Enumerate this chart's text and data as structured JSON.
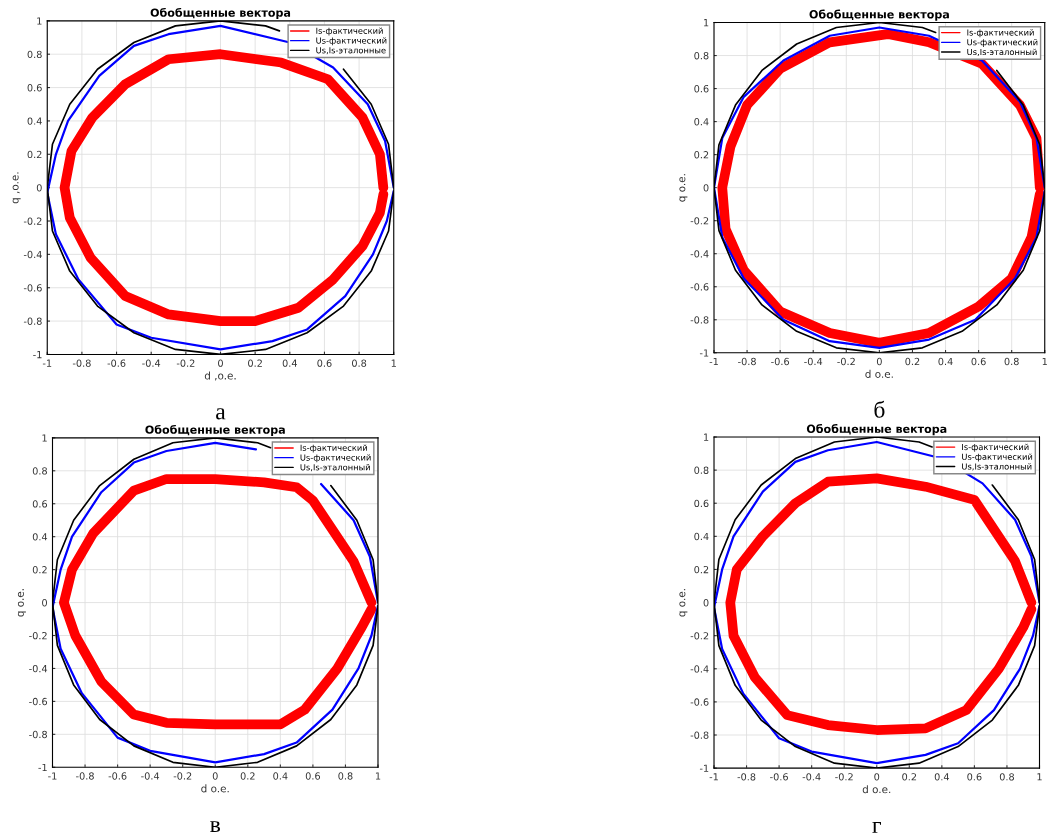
{
  "chart_data": [
    {
      "type": "line",
      "title": "Обобщенные вектора",
      "xlabel": "d ,o.e.",
      "ylabel": "q ,o.e.",
      "xlim": [
        -1,
        1
      ],
      "ylim": [
        -1,
        1
      ],
      "xticks": [
        -1,
        -0.8,
        -0.6,
        -0.4,
        -0.2,
        0,
        0.2,
        0.4,
        0.6,
        0.8,
        1
      ],
      "yticks": [
        -1,
        -0.8,
        -0.6,
        -0.4,
        -0.2,
        0,
        0.2,
        0.4,
        0.6,
        0.8,
        1
      ],
      "grid": true,
      "legend": "top right",
      "annotations": [
        "а"
      ],
      "series": [
        {
          "name": "Is-фактический",
          "color": "#ff0000",
          "x": [
            0.94,
            0.92,
            0.82,
            0.62,
            0.35,
            0,
            -0.3,
            -0.55,
            -0.74,
            -0.86,
            -0.9,
            -0.87,
            -0.75,
            -0.55,
            -0.3,
            0,
            0.2,
            0.45,
            0.65,
            0.82,
            0.92,
            0.94
          ],
          "values": [
            0,
            0.2,
            0.42,
            0.65,
            0.75,
            0.8,
            0.77,
            0.62,
            0.42,
            0.22,
            0,
            -0.18,
            -0.42,
            -0.65,
            -0.76,
            -0.8,
            -0.8,
            -0.72,
            -0.55,
            -0.35,
            -0.15,
            -0.04
          ]
        },
        {
          "name": "Us-фактический",
          "color": "#0000ff",
          "x": [
            1,
            0.95,
            0.85,
            0.65,
            0.4,
            0,
            -0.3,
            -0.5,
            -0.7,
            -0.88,
            -0.95,
            -1,
            -0.95,
            -0.82,
            -0.6,
            -0.4,
            0,
            0.3,
            0.5,
            0.72,
            0.88,
            0.96,
            1
          ],
          "values": [
            0,
            0.28,
            0.5,
            0.72,
            0.87,
            0.97,
            0.92,
            0.85,
            0.67,
            0.4,
            0.2,
            -0.03,
            -0.28,
            -0.55,
            -0.82,
            -0.9,
            -0.97,
            -0.92,
            -0.85,
            -0.65,
            -0.4,
            -0.2,
            -0.02
          ]
        },
        {
          "name": "Us,Is-эталонные",
          "color": "#000000",
          "x": [
            1,
            0.97,
            0.87,
            0.71,
            0.5,
            0.34,
            0.26,
            0,
            -0.26,
            -0.5,
            -0.71,
            -0.87,
            -0.97,
            -1,
            -0.97,
            -0.87,
            -0.71,
            -0.5,
            -0.26,
            0,
            0.26,
            0.5,
            0.71,
            0.87,
            0.97,
            1
          ],
          "values": [
            0,
            0.26,
            0.5,
            0.71,
            null,
            0.94,
            0.97,
            1,
            0.97,
            0.87,
            0.71,
            0.5,
            0.26,
            0,
            -0.26,
            -0.5,
            -0.71,
            -0.87,
            -0.97,
            -1,
            -0.97,
            -0.87,
            -0.71,
            -0.5,
            -0.26,
            -0.02
          ]
        }
      ]
    },
    {
      "type": "line",
      "title": "Обобщенные вектора",
      "xlabel": "d o.e.",
      "ylabel": "q o.e.",
      "xlim": [
        -1,
        1
      ],
      "ylim": [
        -1,
        1
      ],
      "xticks": [
        -1,
        -0.8,
        -0.6,
        -0.4,
        -0.2,
        0,
        0.2,
        0.4,
        0.6,
        0.8,
        1
      ],
      "yticks": [
        -1,
        -0.8,
        -0.6,
        -0.4,
        -0.2,
        0,
        0.2,
        0.4,
        0.6,
        0.8,
        1
      ],
      "grid": true,
      "legend": "top right",
      "annotations": [
        "б"
      ],
      "series": [
        {
          "name": "Is-фактический",
          "color": "#ff0000",
          "x": [
            0.97,
            0.95,
            0.85,
            0.62,
            0.3,
            0.05,
            -0.3,
            -0.6,
            -0.8,
            -0.9,
            -0.95,
            -0.93,
            -0.82,
            -0.6,
            -0.3,
            0,
            0.3,
            0.6,
            0.8,
            0.92,
            0.97
          ],
          "values": [
            0,
            0.3,
            0.5,
            0.75,
            0.88,
            0.93,
            0.88,
            0.72,
            0.5,
            0.25,
            0,
            -0.25,
            -0.5,
            -0.75,
            -0.88,
            -0.94,
            -0.88,
            -0.72,
            -0.55,
            -0.3,
            -0.04
          ]
        },
        {
          "name": "Us-фактический",
          "color": "#0000ff",
          "x": [
            1,
            0.95,
            0.85,
            0.62,
            0.3,
            0,
            -0.3,
            -0.58,
            -0.82,
            -0.95,
            -1,
            -0.95,
            -0.82,
            -0.58,
            -0.3,
            0,
            0.3,
            0.58,
            0.82,
            0.95,
            1
          ],
          "values": [
            0,
            0.3,
            0.52,
            0.77,
            0.92,
            0.97,
            0.92,
            0.77,
            0.55,
            0.3,
            0,
            -0.3,
            -0.55,
            -0.8,
            -0.93,
            -0.97,
            -0.92,
            -0.8,
            -0.55,
            -0.3,
            -0.02
          ]
        },
        {
          "name": "Us,Is-эталонный",
          "color": "#000000",
          "x": [
            1,
            0.97,
            0.87,
            0.71,
            0.5,
            0.34,
            0.26,
            0,
            -0.26,
            -0.5,
            -0.71,
            -0.87,
            -0.97,
            -1,
            -0.97,
            -0.87,
            -0.71,
            -0.5,
            -0.26,
            0,
            0.26,
            0.5,
            0.71,
            0.87,
            0.97,
            1
          ],
          "values": [
            0,
            0.26,
            0.5,
            0.71,
            null,
            0.94,
            0.97,
            1,
            0.97,
            0.87,
            0.71,
            0.5,
            0.26,
            0,
            -0.26,
            -0.5,
            -0.71,
            -0.87,
            -0.97,
            -1,
            -0.97,
            -0.87,
            -0.71,
            -0.5,
            -0.26,
            -0.02
          ]
        }
      ]
    },
    {
      "type": "line",
      "title": "Обобщенные вектора",
      "xlabel": "d o.e.",
      "ylabel": "q o.e.",
      "xlim": [
        -1,
        1
      ],
      "ylim": [
        -1,
        1
      ],
      "xticks": [
        -1,
        -0.8,
        -0.6,
        -0.4,
        -0.2,
        0,
        0.2,
        0.4,
        0.6,
        0.8,
        1
      ],
      "yticks": [
        -1,
        -0.8,
        -0.6,
        -0.4,
        -0.2,
        0,
        0.2,
        0.4,
        0.6,
        0.8,
        1
      ],
      "grid": true,
      "legend": "top right",
      "annotations": [
        "в"
      ],
      "series": [
        {
          "name": "Is-фактический",
          "color": "#ff0000",
          "x": [
            0.96,
            0.85,
            0.6,
            0.5,
            0.3,
            0,
            -0.3,
            -0.5,
            -0.75,
            -0.88,
            -0.93,
            -0.86,
            -0.7,
            -0.5,
            -0.3,
            0,
            0.2,
            0.4,
            0.55,
            0.75,
            0.9,
            0.96
          ],
          "values": [
            0,
            0.25,
            0.62,
            0.7,
            0.73,
            0.75,
            0.75,
            0.68,
            0.42,
            0.2,
            0,
            -0.2,
            -0.48,
            -0.68,
            -0.73,
            -0.74,
            -0.74,
            -0.74,
            -0.65,
            -0.4,
            -0.15,
            -0.04
          ]
        },
        {
          "name": "Us-фактический",
          "color": "#0000ff",
          "x": [
            1,
            0.95,
            0.85,
            0.65,
            0.4,
            0.25,
            0,
            -0.3,
            -0.5,
            -0.7,
            -0.88,
            -0.95,
            -1,
            -0.95,
            -0.82,
            -0.6,
            -0.4,
            0,
            0.3,
            0.5,
            0.72,
            0.88,
            0.96,
            1
          ],
          "values": [
            0,
            0.28,
            0.5,
            0.72,
            null,
            0.93,
            0.97,
            0.92,
            0.85,
            0.67,
            0.4,
            0.2,
            -0.03,
            -0.28,
            -0.55,
            -0.82,
            -0.9,
            -0.97,
            -0.92,
            -0.85,
            -0.65,
            -0.4,
            -0.2,
            -0.02
          ]
        },
        {
          "name": "Us,Is-эталонный",
          "color": "#000000",
          "x": [
            1,
            0.97,
            0.87,
            0.71,
            0.5,
            0.34,
            0.26,
            0,
            -0.26,
            -0.5,
            -0.71,
            -0.87,
            -0.97,
            -1,
            -0.97,
            -0.87,
            -0.71,
            -0.5,
            -0.26,
            0,
            0.26,
            0.5,
            0.71,
            0.87,
            0.97,
            1
          ],
          "values": [
            0,
            0.26,
            0.5,
            0.71,
            null,
            0.94,
            0.97,
            1,
            0.97,
            0.87,
            0.71,
            0.5,
            0.26,
            0,
            -0.26,
            -0.5,
            -0.71,
            -0.87,
            -0.97,
            -1,
            -0.97,
            -0.87,
            -0.71,
            -0.5,
            -0.26,
            -0.02
          ]
        }
      ]
    },
    {
      "type": "line",
      "title": "Обобщенные вектора",
      "xlabel": "d o.e.",
      "ylabel": "q o.e.",
      "xlim": [
        -1,
        1
      ],
      "ylim": [
        -1,
        1
      ],
      "xticks": [
        -1,
        -0.8,
        -0.6,
        -0.4,
        -0.2,
        0,
        0.2,
        0.4,
        0.6,
        0.8,
        1
      ],
      "yticks": [
        -1,
        -0.8,
        -0.6,
        -0.4,
        -0.2,
        0,
        0.2,
        0.4,
        0.6,
        0.8,
        1
      ],
      "grid": true,
      "legend": "top right",
      "annotations": [
        "г"
      ],
      "series": [
        {
          "name": "Is-фактический",
          "color": "#ff0000",
          "x": [
            0.95,
            0.85,
            0.6,
            0.3,
            0,
            -0.3,
            -0.5,
            -0.7,
            -0.86,
            -0.9,
            -0.88,
            -0.75,
            -0.55,
            -0.3,
            0,
            0.3,
            0.55,
            0.75,
            0.9,
            0.95
          ],
          "values": [
            0,
            0.25,
            0.62,
            0.7,
            0.75,
            0.73,
            0.6,
            0.4,
            0.2,
            0,
            -0.2,
            -0.45,
            -0.68,
            -0.74,
            -0.77,
            -0.76,
            -0.65,
            -0.4,
            -0.15,
            -0.04
          ]
        },
        {
          "name": "Us-фактический",
          "color": "#0000ff",
          "x": [
            1,
            0.95,
            0.85,
            0.65,
            0.4,
            0,
            -0.3,
            -0.5,
            -0.7,
            -0.88,
            -0.95,
            -1,
            -0.95,
            -0.82,
            -0.6,
            -0.4,
            0,
            0.3,
            0.5,
            0.72,
            0.88,
            0.96,
            1
          ],
          "values": [
            0,
            0.28,
            0.5,
            0.72,
            0.87,
            0.97,
            0.92,
            0.85,
            0.67,
            0.4,
            0.2,
            -0.03,
            -0.28,
            -0.55,
            -0.82,
            -0.9,
            -0.97,
            -0.92,
            -0.85,
            -0.65,
            -0.4,
            -0.2,
            -0.02
          ]
        },
        {
          "name": "Us,Is-эталонный",
          "color": "#000000",
          "x": [
            1,
            0.97,
            0.87,
            0.71,
            0.5,
            0.34,
            0.26,
            0,
            -0.26,
            -0.5,
            -0.71,
            -0.87,
            -0.97,
            -1,
            -0.97,
            -0.87,
            -0.71,
            -0.5,
            -0.26,
            0,
            0.26,
            0.5,
            0.71,
            0.87,
            0.97,
            1
          ],
          "values": [
            0,
            0.26,
            0.5,
            0.71,
            null,
            0.94,
            0.97,
            1,
            0.97,
            0.87,
            0.71,
            0.5,
            0.26,
            0,
            -0.26,
            -0.5,
            -0.71,
            -0.87,
            -0.97,
            -1,
            -0.97,
            -0.87,
            -0.71,
            -0.5,
            -0.26,
            -0.02
          ]
        }
      ]
    }
  ]
}
